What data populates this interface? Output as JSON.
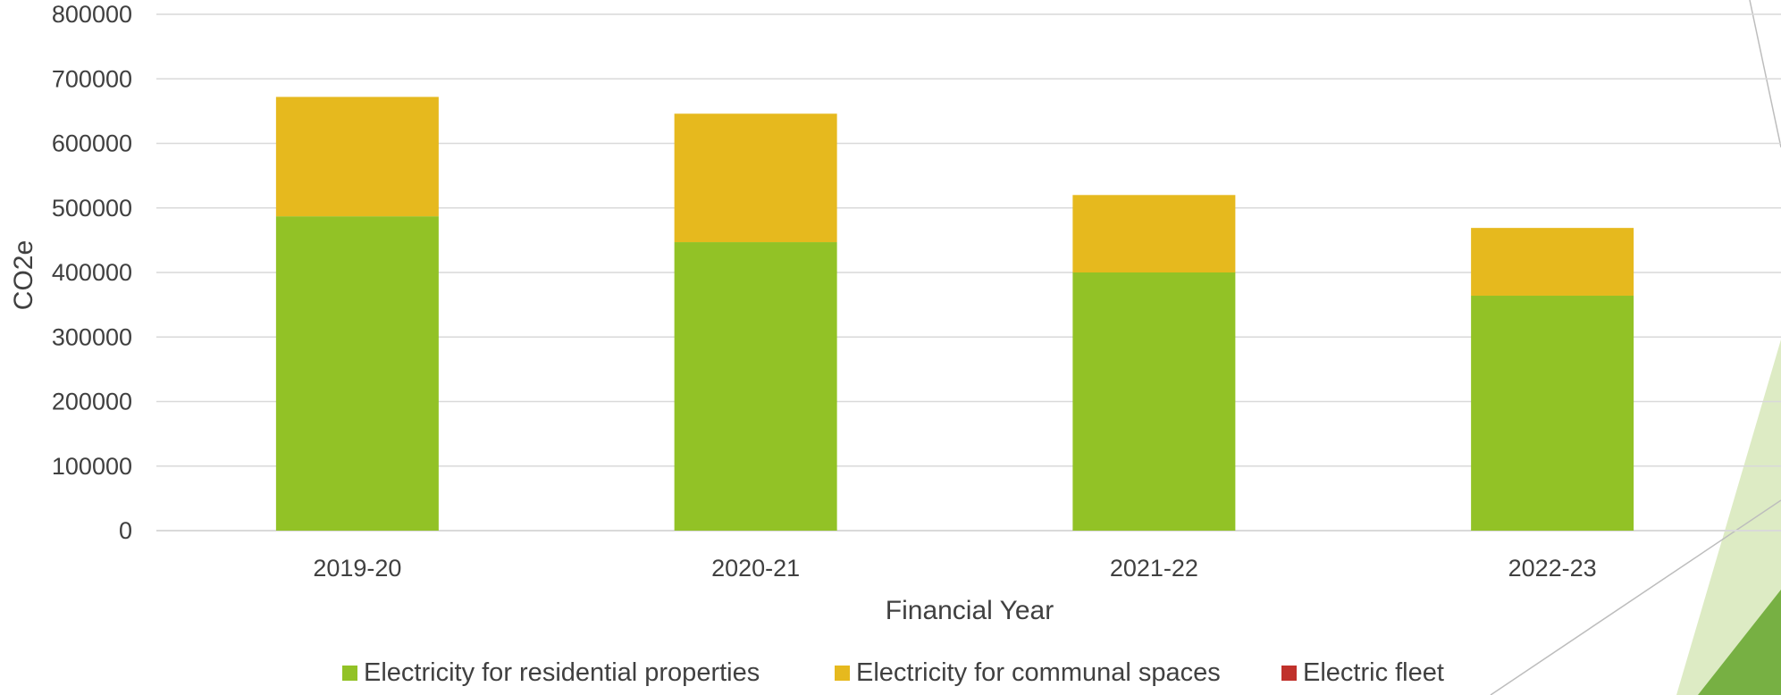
{
  "chart_data": {
    "type": "bar",
    "stacked": true,
    "title": "",
    "xlabel": "Financial Year",
    "ylabel": "CO2e",
    "categories": [
      "2019-20",
      "2020-21",
      "2021-22",
      "2022-23"
    ],
    "ylim": [
      0,
      800000
    ],
    "yticks": [
      "0",
      "100000",
      "200000",
      "300000",
      "400000",
      "500000",
      "600000",
      "700000",
      "800000"
    ],
    "grid": true,
    "legend_position": "bottom",
    "series": [
      {
        "name": "Electricity for residential properties",
        "color": "#92C226",
        "values": [
          487000,
          447000,
          400000,
          364000
        ]
      },
      {
        "name": "Electricity for communal spaces",
        "color": "#E6B91E",
        "values": [
          185000,
          199000,
          120000,
          105000
        ]
      },
      {
        "name": "Electric fleet",
        "color": "#C0312B",
        "values": [
          0,
          0,
          0,
          0
        ]
      }
    ]
  },
  "decoration": {
    "accent_light": "#DDEBC4",
    "accent_dark": "#77B043",
    "line_color": "#BDBDBD"
  }
}
